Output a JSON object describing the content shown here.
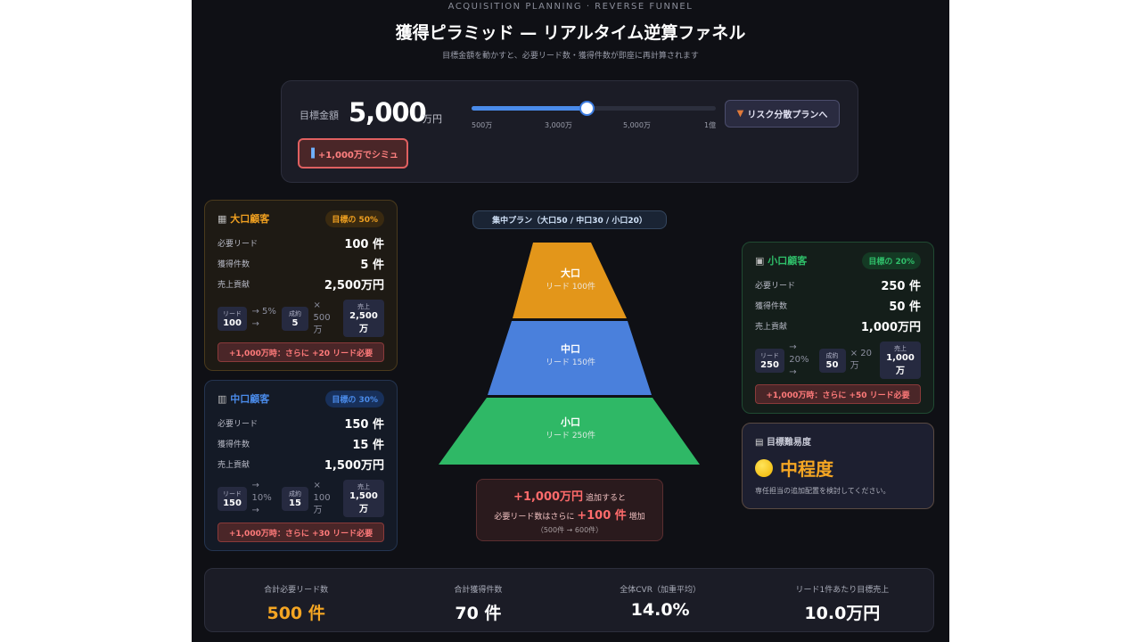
{
  "header": {
    "eyebrow": "ACQUISITION PLANNING · REVERSE FUNNEL",
    "title": "獲得ピラミッド — リアルタイム逆算ファネル",
    "subtitle": "目標金額を動かすと、必要リード数・獲得件数が即座に再計算されます"
  },
  "goal": {
    "label": "目標金額",
    "value": "5,000",
    "unit": "万円",
    "slider_percent": 47,
    "ticks": [
      "500万",
      "3,000万",
      "5,000万",
      "1億"
    ],
    "risk_button": "リスク分散プランへ",
    "risk_icon": "shield-icon",
    "sim_button": "+1,000万でシミュ",
    "sim_icon": "bar-chart-icon"
  },
  "colors": {
    "large": "#f0a020",
    "mid": "#4a8bea",
    "small": "#2fbf6a",
    "warn": "#ff6b6b"
  },
  "segments": {
    "large": {
      "icon": "building-icon",
      "name": "大口顧客",
      "badge": "目標の 50%",
      "rows": [
        {
          "l": "必要リード",
          "v": "100 件"
        },
        {
          "l": "獲得件数",
          "v": "5 件"
        },
        {
          "l": "売上貢献",
          "v": "2,500万円"
        }
      ],
      "flow": {
        "lead_label": "リード",
        "lead": "100",
        "rate": "→ 5% →",
        "deal_label": "成約",
        "deal": "5",
        "price": "× 500 万",
        "sales_label": "売上",
        "sales": "2,500 万"
      },
      "warn": "+1,000万時：さらに +20 リード必要"
    },
    "mid": {
      "icon": "office-icon",
      "name": "中口顧客",
      "badge": "目標の 30%",
      "rows": [
        {
          "l": "必要リード",
          "v": "150 件"
        },
        {
          "l": "獲得件数",
          "v": "15 件"
        },
        {
          "l": "売上貢献",
          "v": "1,500万円"
        }
      ],
      "flow": {
        "lead_label": "リード",
        "lead": "150",
        "rate": "→ 10% →",
        "deal_label": "成約",
        "deal": "15",
        "price": "× 100 万",
        "sales_label": "売上",
        "sales": "1,500 万"
      },
      "warn": "+1,000万時：さらに +30 リード必要"
    },
    "small": {
      "icon": "shop-icon",
      "name": "小口顧客",
      "badge": "目標の 20%",
      "rows": [
        {
          "l": "必要リード",
          "v": "250 件"
        },
        {
          "l": "獲得件数",
          "v": "50 件"
        },
        {
          "l": "売上貢献",
          "v": "1,000万円"
        }
      ],
      "flow": {
        "lead_label": "リード",
        "lead": "250",
        "rate": "→ 20% →",
        "deal_label": "成約",
        "deal": "50",
        "price": "× 20 万",
        "sales_label": "売上",
        "sales": "1,000 万"
      },
      "warn": "+1,000万時：さらに +50 リード必要"
    }
  },
  "pyramid": {
    "plan": "集中プラン（大口50 / 中口30 / 小口20）",
    "layers": [
      {
        "name": "大口",
        "sub": "リード 100件"
      },
      {
        "name": "中口",
        "sub": "リード 150件"
      },
      {
        "name": "小口",
        "sub": "リード 250件"
      }
    ]
  },
  "delta": {
    "amount": "+1,000万円",
    "t1": "追加すると",
    "t2": "必要リード数はさらに",
    "leads": "+100 件",
    "t3": "増加",
    "range": "（500件 → 600件）"
  },
  "difficulty": {
    "icon": "clipboard-icon",
    "title": "目標難易度",
    "level": "中程度",
    "note": "専任担当の追加配置を検討してください。"
  },
  "summary": [
    {
      "l": "合計必要リード数",
      "v": "500 件"
    },
    {
      "l": "合計獲得件数",
      "v": "70 件"
    },
    {
      "l": "全体CVR（加重平均）",
      "v": "14.0%"
    },
    {
      "l": "リード1件あたり目標売上",
      "v": "10.0万円"
    }
  ]
}
